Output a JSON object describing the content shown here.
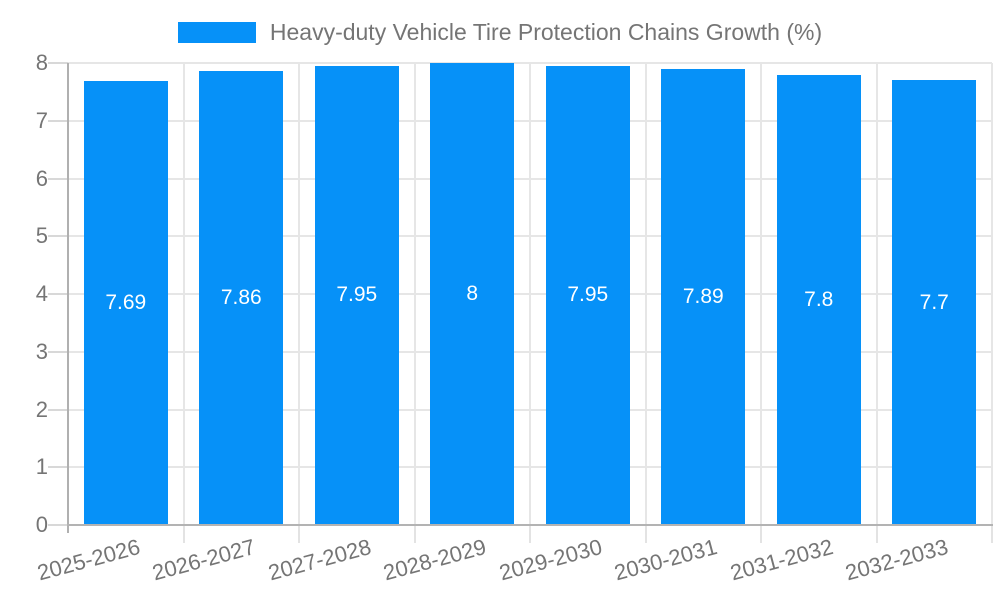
{
  "legend": {
    "label": "Heavy-duty Vehicle Tire Protection Chains Growth (%)"
  },
  "chart_data": {
    "type": "bar",
    "title": "Heavy-duty Vehicle Tire Protection Chains Growth (%)",
    "categories": [
      "2025-2026",
      "2026-2027",
      "2027-2028",
      "2028-2029",
      "2029-2030",
      "2030-2031",
      "2031-2032",
      "2032-2033"
    ],
    "values": [
      7.69,
      7.86,
      7.95,
      8,
      7.95,
      7.89,
      7.8,
      7.7
    ],
    "value_labels": [
      "7.69",
      "7.86",
      "7.95",
      "8",
      "7.95",
      "7.89",
      "7.8",
      "7.7"
    ],
    "xlabel": "",
    "ylabel": "",
    "ylim": [
      0,
      8
    ],
    "ytick_labels": [
      "0",
      "1",
      "2",
      "3",
      "4",
      "5",
      "6",
      "7",
      "8"
    ],
    "grid": true,
    "legend_position": "top-center",
    "colors": {
      "bar": "#0691f8",
      "grid": "#e6e6e6",
      "axis": "#b0b0b0",
      "tick_text": "#757575",
      "value_text": "#ffffff",
      "background": "#ffffff"
    }
  }
}
